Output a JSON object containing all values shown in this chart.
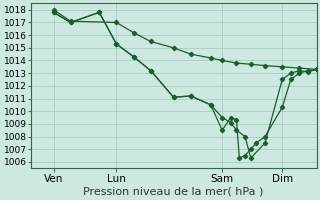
{
  "xlabel": "Pression niveau de la mer( hPa )",
  "background_color": "#cce8e0",
  "plot_bg_color": "#cce8e0",
  "grid_color": "#99ccbb",
  "line_color": "#1a5e2a",
  "ylim": [
    1005.5,
    1018.5
  ],
  "yticks": [
    1006,
    1007,
    1008,
    1009,
    1010,
    1011,
    1012,
    1013,
    1014,
    1015,
    1016,
    1017,
    1018
  ],
  "xlim": [
    0,
    100
  ],
  "xtick_positions": [
    8,
    30,
    67,
    88
  ],
  "xtick_labels": [
    "Ven",
    "Lun",
    "Sam",
    "Dim"
  ],
  "series1_x": [
    8,
    14,
    30,
    36,
    42,
    50,
    56,
    63,
    67,
    72,
    77,
    82,
    88,
    94,
    100
  ],
  "series1_y": [
    1018.0,
    1017.1,
    1017.0,
    1016.2,
    1015.5,
    1015.0,
    1014.5,
    1014.2,
    1014.0,
    1013.8,
    1013.7,
    1013.6,
    1013.5,
    1013.4,
    1013.3
  ],
  "series2_x": [
    8,
    14,
    24,
    30,
    36,
    42,
    50,
    56,
    63,
    67,
    70,
    72,
    75,
    77,
    82,
    88,
    91,
    94,
    97,
    100
  ],
  "series2_y": [
    1017.8,
    1017.0,
    1017.8,
    1015.3,
    1014.3,
    1013.2,
    1011.1,
    1011.2,
    1010.5,
    1009.5,
    1009.1,
    1008.5,
    1008.0,
    1006.3,
    1007.5,
    1012.5,
    1013.0,
    1013.2,
    1013.1,
    1013.3
  ],
  "series3_x": [
    8,
    14,
    24,
    30,
    36,
    42,
    50,
    56,
    63,
    67,
    70,
    72,
    73,
    75,
    77,
    79,
    82,
    88,
    91,
    94,
    97,
    100
  ],
  "series3_y": [
    1017.8,
    1017.0,
    1017.8,
    1015.3,
    1014.3,
    1013.2,
    1011.1,
    1011.2,
    1010.5,
    1008.5,
    1009.5,
    1009.3,
    1006.3,
    1006.5,
    1007.0,
    1007.5,
    1008.0,
    1010.3,
    1012.5,
    1013.0,
    1013.2,
    1013.3
  ],
  "marker": "D",
  "marker_size": 2.2,
  "line_width": 0.9,
  "font_size_xlabel": 8,
  "font_size_yticks": 6.5,
  "font_size_xticks": 7.5
}
